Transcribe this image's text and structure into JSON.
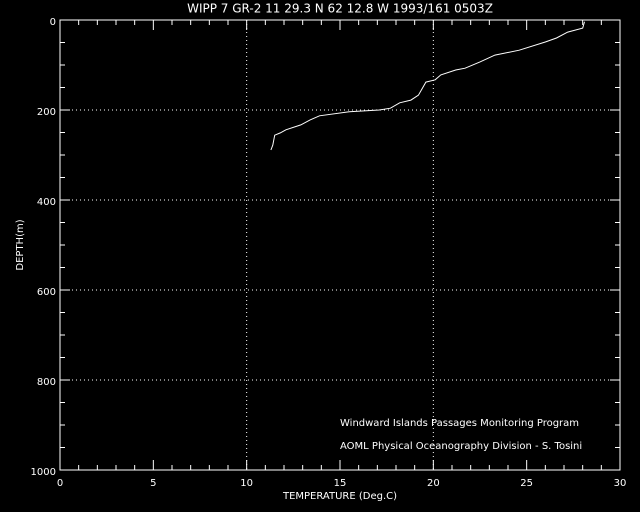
{
  "chart_data": {
    "type": "line",
    "title": "WIPP 7 GR-2  11 29.3 N  62 12.8 W  1993/161 0503Z",
    "xlabel": "TEMPERATURE (Deg.C)",
    "ylabel": "DEPTH(m)",
    "annotations": [
      "Windward Islands Passages Monitoring Program",
      "AOML Physical Oceanography Division - S. Tosini"
    ],
    "xlim": [
      0,
      30
    ],
    "ylim": [
      0,
      1000
    ],
    "y_inverted": true,
    "xticks": [
      0,
      5,
      10,
      15,
      20,
      25,
      30
    ],
    "yticks": [
      0,
      200,
      400,
      600,
      800,
      1000
    ],
    "xminorticks": [
      1,
      2,
      3,
      4,
      6,
      7,
      8,
      9,
      11,
      12,
      13,
      14,
      16,
      17,
      18,
      19,
      21,
      22,
      23,
      24,
      26,
      27,
      28,
      29
    ],
    "yminorticks": [
      50,
      100,
      150,
      250,
      300,
      350,
      450,
      500,
      550,
      650,
      700,
      750,
      850,
      900,
      950
    ],
    "xgrid": [
      10,
      20
    ],
    "ygrid": [
      200,
      400,
      600,
      800
    ],
    "color": "#ffffff",
    "x": [
      28.1,
      28.0,
      27.2,
      26.6,
      26.0,
      24.6,
      23.3,
      22.5,
      21.7,
      21.2,
      20.4,
      20.1,
      19.6,
      19.2,
      18.8,
      18.2,
      17.7,
      17.1,
      15.5,
      13.9,
      13.4,
      12.9,
      12.1,
      11.8,
      11.5,
      11.4,
      11.3
    ],
    "values": [
      4,
      18,
      27,
      40,
      49,
      67,
      78,
      93,
      107,
      111,
      122,
      133,
      138,
      167,
      178,
      184,
      196,
      200,
      204,
      213,
      222,
      233,
      244,
      251,
      256,
      278,
      289
    ]
  }
}
